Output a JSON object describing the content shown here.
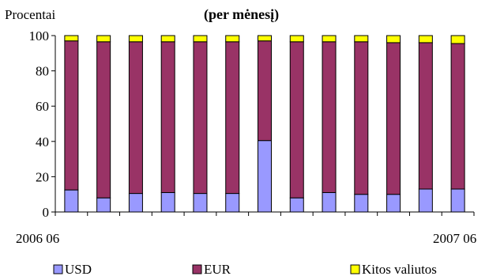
{
  "chart_data": {
    "type": "bar",
    "stacked": true,
    "title": "(per mėnesį)",
    "ylabel": "Procentai",
    "ylim": [
      0,
      100
    ],
    "yticks": [
      0,
      20,
      40,
      60,
      80,
      100
    ],
    "x_start_label": "2006 06",
    "x_end_label": "2007 06",
    "categories_count": 13,
    "grid": false,
    "legend_position": "bottom",
    "series": [
      {
        "name": "USD",
        "color": "#9999ff",
        "values": [
          12.5,
          8,
          10.5,
          11,
          10.5,
          10.5,
          40.5,
          8,
          11,
          10,
          10,
          13,
          13
        ]
      },
      {
        "name": "EUR",
        "color": "#993366",
        "values": [
          84.5,
          88.5,
          86,
          85.5,
          86,
          86,
          56.5,
          88.5,
          85.5,
          86.5,
          86,
          83,
          82.5
        ]
      },
      {
        "name": "Kitos valiutos",
        "color": "#ffff00",
        "values": [
          3,
          3.5,
          3.5,
          3.5,
          3.5,
          3.5,
          3,
          3.5,
          3.5,
          3.5,
          4,
          4,
          4.5
        ]
      }
    ]
  }
}
